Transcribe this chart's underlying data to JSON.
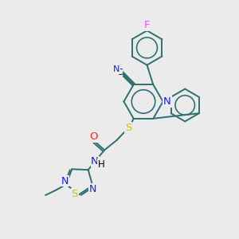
{
  "bg_color": "#ebebeb",
  "bond_color": "#2d7070",
  "bond_width": 1.4,
  "N_color": "#1a1aff",
  "O_color": "#ff2020",
  "S_color": "#c8c800",
  "F_color": "#ff44ff",
  "figsize": [
    3.0,
    3.0
  ],
  "dpi": 100,
  "xlim": [
    0,
    10
  ],
  "ylim": [
    0,
    10
  ]
}
